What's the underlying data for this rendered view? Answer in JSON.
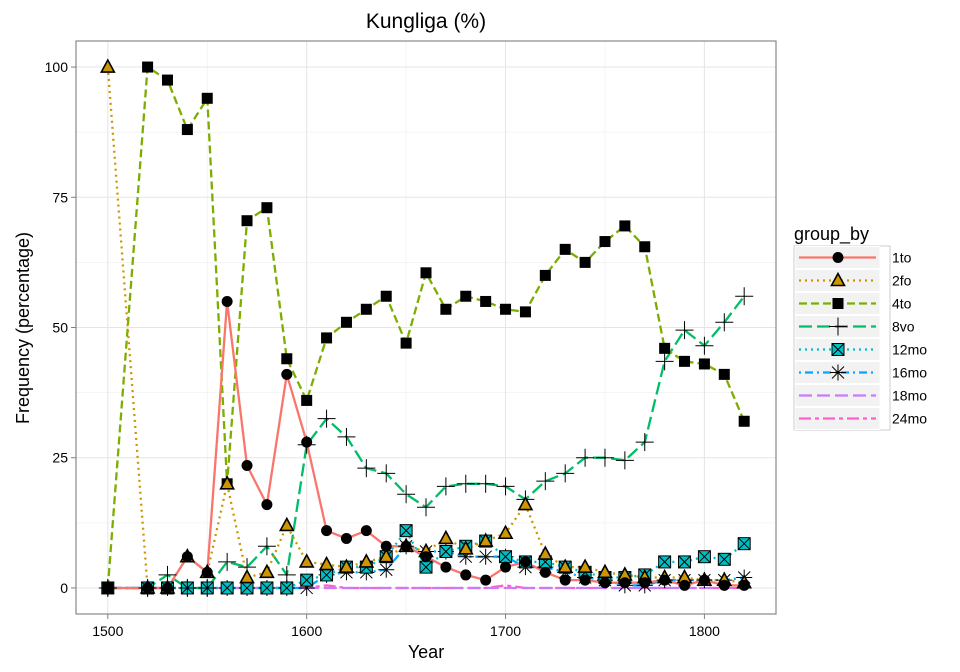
{
  "chart_data": {
    "type": "line",
    "title": "Kungliga (%)",
    "xlabel": "Year",
    "ylabel": "Frequency (percentage)",
    "xlim": [
      1500,
      1820
    ],
    "ylim": [
      0,
      100
    ],
    "xticks": [
      1500,
      1600,
      1700,
      1800
    ],
    "yticks": [
      0,
      25,
      50,
      75,
      100
    ],
    "grid": true,
    "legend": {
      "title": "group_by",
      "position": "right"
    },
    "x": [
      1500,
      1520,
      1530,
      1540,
      1550,
      1560,
      1570,
      1580,
      1590,
      1600,
      1610,
      1620,
      1630,
      1640,
      1650,
      1660,
      1670,
      1680,
      1690,
      1700,
      1710,
      1720,
      1730,
      1740,
      1750,
      1760,
      1770,
      1780,
      1790,
      1800,
      1810,
      1820
    ],
    "series": [
      {
        "name": "1to",
        "color": "#F8766D",
        "dash": "solid",
        "marker": "circle",
        "values": [
          0,
          0,
          0,
          6,
          3,
          55,
          23.5,
          16,
          41,
          28,
          11,
          9.5,
          11,
          8,
          8,
          6,
          4,
          2.5,
          1.5,
          4,
          5,
          3,
          1.5,
          1.5,
          1,
          1,
          1,
          1.5,
          0.5,
          1.5,
          0.5,
          0.5
        ]
      },
      {
        "name": "2fo",
        "color": "#CD9600",
        "dash": "dotted",
        "marker": "triangle",
        "values": [
          100,
          0,
          0,
          6,
          3,
          20,
          2,
          3,
          12,
          5,
          4.5,
          4,
          5,
          6,
          8,
          7,
          9.5,
          7.5,
          9,
          10.5,
          16,
          6.5,
          4,
          4,
          3,
          2.5,
          2,
          2,
          2,
          1.5,
          1.5,
          1
        ]
      },
      {
        "name": "4to",
        "color": "#7CAE00",
        "dash": "dashed",
        "marker": "square",
        "values": [
          0,
          100,
          97.5,
          88,
          94,
          20,
          70.5,
          73,
          44,
          36,
          48,
          51,
          53.5,
          56,
          47,
          60.5,
          53.5,
          56,
          55,
          53.5,
          53,
          60,
          65,
          62.5,
          66.5,
          69.5,
          65.5,
          46,
          43.5,
          43,
          41,
          32
        ]
      },
      {
        "name": "8vo",
        "color": "#00BE67",
        "dash": "longdash",
        "marker": "plus",
        "values": [
          0,
          0,
          2.5,
          0,
          0,
          5,
          4,
          8,
          2.5,
          27.5,
          32.5,
          29,
          23,
          22,
          18,
          15.5,
          19.5,
          20,
          20,
          19.5,
          17,
          20.5,
          22,
          25,
          25,
          24.5,
          28,
          43.5,
          49.5,
          46.5,
          51,
          56
        ]
      },
      {
        "name": "12mo",
        "color": "#00BFC4",
        "dash": "dotted",
        "marker": "boxx",
        "values": [
          0,
          0,
          0,
          0,
          0,
          0,
          0,
          0,
          0,
          1.5,
          2.5,
          4,
          4,
          6,
          11,
          4,
          7,
          8,
          9,
          6,
          5,
          5,
          4,
          3,
          2,
          2,
          2.5,
          5,
          5,
          6,
          5.5,
          8.5
        ]
      },
      {
        "name": "16mo",
        "color": "#00A9FF",
        "dash": "dotdash",
        "marker": "asterisk",
        "values": [
          0,
          0,
          0,
          0,
          0,
          0,
          0,
          0,
          0,
          0,
          2.5,
          3,
          3,
          3.5,
          8,
          7,
          7,
          6,
          6,
          6,
          4,
          4,
          3,
          2,
          1.5,
          0.5,
          0.5,
          1.5,
          1.5,
          1.5,
          1.5,
          2
        ]
      },
      {
        "name": "18mo",
        "color": "#C77CFF",
        "dash": "longdash",
        "marker": "none",
        "values": [
          0,
          0,
          0,
          0,
          0,
          0,
          0,
          0,
          0,
          0,
          0,
          0,
          0,
          0,
          0,
          0,
          0,
          0,
          0,
          0,
          0,
          0,
          0,
          0,
          0,
          0,
          0,
          0,
          0,
          0,
          0,
          0
        ]
      },
      {
        "name": "24mo",
        "color": "#FF61CC",
        "dash": "twodash",
        "marker": "none",
        "values": [
          0,
          0,
          0,
          0,
          0,
          0,
          0,
          0,
          0,
          0,
          0.5,
          0,
          0,
          0,
          0,
          0,
          0,
          0,
          0,
          0.5,
          0,
          0,
          0,
          0,
          0,
          0,
          0,
          0,
          0,
          0,
          0,
          0
        ]
      }
    ]
  }
}
